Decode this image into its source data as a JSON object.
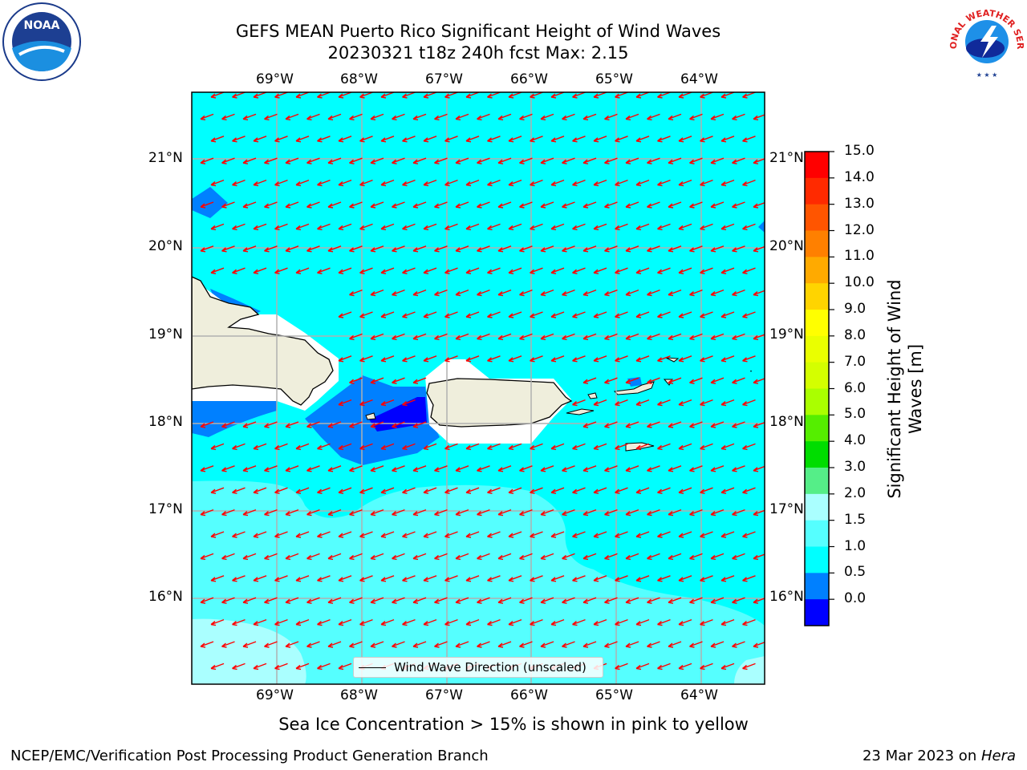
{
  "title": {
    "line1": "GEFS MEAN Puerto Rico Significant Height of Wind Waves",
    "line2": "20230321 t18z 240h fcst   Max: 2.15"
  },
  "map": {
    "lon_labels": [
      "69°W",
      "68°W",
      "67°W",
      "66°W",
      "65°W",
      "64°W"
    ],
    "lat_labels": [
      "21°N",
      "20°N",
      "19°N",
      "18°N",
      "17°N",
      "16°N"
    ],
    "legend_label": "Wind Wave Direction (unscaled)",
    "arrow_color": "#ff0000"
  },
  "colorbar": {
    "label": "Significant Height of Wind Waves [m]",
    "label_line1": "Significant Height of Wind",
    "label_line2": "Waves [m]",
    "ticks": [
      "15.0",
      "14.0",
      "13.0",
      "12.0",
      "11.0",
      "10.0",
      "9.0",
      "8.0",
      "7.0",
      "6.0",
      "5.0",
      "4.0",
      "3.0",
      "2.0",
      "1.5",
      "1.0",
      "0.5",
      "0.0"
    ],
    "colors_top_to_bottom": [
      "#ff0000",
      "#ff2a00",
      "#ff5500",
      "#ff8000",
      "#ffaa00",
      "#ffd400",
      "#ffff00",
      "#eaff00",
      "#d4ff00",
      "#aaff00",
      "#55ee00",
      "#00dd00",
      "#55ee88",
      "#aaffff",
      "#55ffff",
      "#00ffff",
      "#0080ff",
      "#0000ff"
    ]
  },
  "note": "Sea Ice Concentration > 15% is shown in pink to yellow",
  "footer": {
    "left": "NCEP/EMC/Verification Post Processing Product Generation Branch",
    "right_date": "23 Mar 2023 on ",
    "right_host": "Hera"
  },
  "logos": {
    "noaa_text": "NOAA",
    "nws_text": "NATIONAL WEATHER SERVICE"
  }
}
